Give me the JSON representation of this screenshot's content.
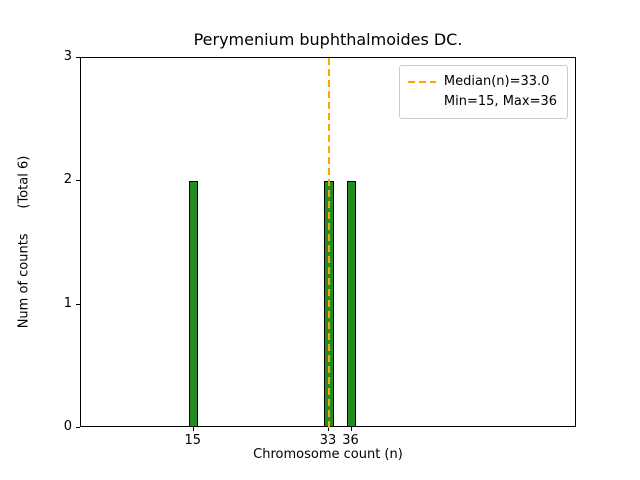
{
  "chart_data": {
    "type": "bar",
    "title": "Perymenium buphthalmoides DC.",
    "xlabel": "Chromosome count (n)",
    "ylabel": "Num of counts      (Total 6)",
    "x": [
      15,
      33,
      36
    ],
    "counts": [
      2,
      2,
      2
    ],
    "total_counts": 6,
    "bar_width": 1,
    "xlim": [
      0,
      66
    ],
    "ylim": [
      0,
      3
    ],
    "xticks": [
      15,
      33,
      36
    ],
    "yticks": [
      0,
      1,
      2,
      3
    ],
    "median": 33.0,
    "min": 15,
    "max": 36,
    "colors": {
      "bar_fill": "#228B22",
      "bar_edge": "#000000",
      "median_line": "#FFA500"
    },
    "legend": {
      "median_label": "Median(n)=33.0",
      "minmax_label": "Min=15, Max=36"
    }
  }
}
